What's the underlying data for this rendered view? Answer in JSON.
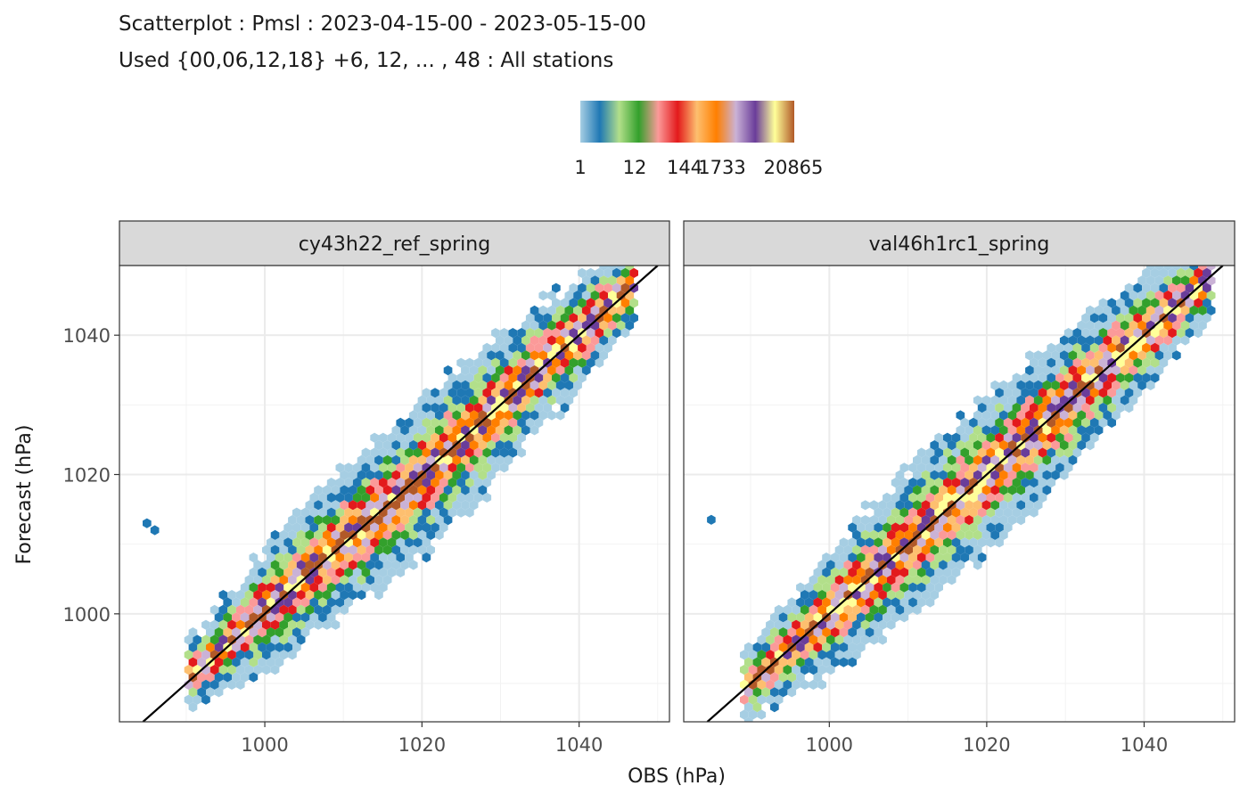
{
  "chart_data": {
    "type": "heatmap",
    "subtype": "hexbin-scatter",
    "title": "Scatterplot : Pmsl : 2023-04-15-00 - 2023-05-15-00",
    "subtitle": "Used {00,06,12,18} +6, 12, ... , 48 : All stations",
    "xlabel": "OBS (hPa)",
    "ylabel": "Forecast (hPa)",
    "xlim": [
      981.5,
      1051.5
    ],
    "ylim": [
      984.5,
      1050
    ],
    "x_ticks": [
      "1000",
      "1020",
      "1040"
    ],
    "y_ticks": [
      "1000",
      "1020",
      "1040"
    ],
    "grid": true,
    "legend": {
      "position": "top",
      "labels": [
        "1",
        "12",
        "144",
        "1733",
        "20865"
      ],
      "colors": [
        "#a6cee3",
        "#1f78b4",
        "#b2df8a",
        "#33a02c",
        "#fb9a99",
        "#e31a1c",
        "#fdbf6f",
        "#ff7f00",
        "#cab2d6",
        "#6a3d9a",
        "#ffff99",
        "#b15928"
      ]
    },
    "reference_line": {
      "slope": 1,
      "intercept": 0,
      "color": "#000000"
    },
    "panels": [
      {
        "label": "cy43h22_ref_spring",
        "band": [
          {
            "x": 991,
            "y": 991.5
          },
          {
            "x": 996,
            "y": 996.5
          },
          {
            "x": 1000,
            "y": 1000.5
          },
          {
            "x": 1005,
            "y": 1005.5
          },
          {
            "x": 1010,
            "y": 1010.5
          },
          {
            "x": 1015,
            "y": 1014.5
          },
          {
            "x": 1020,
            "y": 1019.5
          },
          {
            "x": 1025,
            "y": 1025
          },
          {
            "x": 1030,
            "y": 1030
          },
          {
            "x": 1035,
            "y": 1035.5
          },
          {
            "x": 1040,
            "y": 1040
          },
          {
            "x": 1044,
            "y": 1044.5
          }
        ],
        "outliers": [
          {
            "x": 985,
            "y": 1013
          },
          {
            "x": 986,
            "y": 1012
          }
        ]
      },
      {
        "label": "val46h1rc1_spring",
        "band": [
          {
            "x": 990,
            "y": 990
          },
          {
            "x": 995,
            "y": 995
          },
          {
            "x": 1000,
            "y": 1000
          },
          {
            "x": 1005,
            "y": 1005
          },
          {
            "x": 1010,
            "y": 1010
          },
          {
            "x": 1015,
            "y": 1015
          },
          {
            "x": 1020,
            "y": 1020
          },
          {
            "x": 1025,
            "y": 1025
          },
          {
            "x": 1030,
            "y": 1030
          },
          {
            "x": 1035,
            "y": 1035.5
          },
          {
            "x": 1040,
            "y": 1040
          },
          {
            "x": 1046,
            "y": 1046
          }
        ],
        "outliers": [
          {
            "x": 985,
            "y": 1013.5
          }
        ]
      }
    ]
  }
}
